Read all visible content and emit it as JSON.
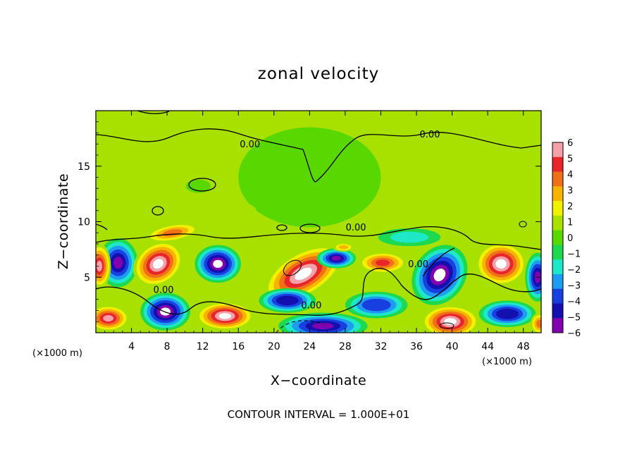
{
  "chart_data": {
    "type": "heatmap",
    "title": "zonal velocity",
    "xlabel": "X−coordinate",
    "ylabel": "Z−coordinate",
    "x_unit_left": "(×1000 m)",
    "x_unit_right": "(×1000 m)",
    "footnote": "CONTOUR INTERVAL = 1.000E+01",
    "xlim": [
      0,
      50
    ],
    "ylim": [
      0,
      20
    ],
    "x_ticks": [
      4,
      8,
      12,
      16,
      20,
      24,
      28,
      32,
      36,
      40,
      44,
      48
    ],
    "y_ticks": [
      5,
      10,
      15
    ],
    "colorbar": {
      "ticks": [
        "6",
        "5",
        "4",
        "3",
        "2",
        "1",
        "0",
        "−1",
        "−2",
        "−3",
        "−4",
        "−5",
        "−6"
      ],
      "range": [
        -6,
        6
      ],
      "colors": [
        "#f4a0a8",
        "#e8262a",
        "#f07018",
        "#f7b300",
        "#f0f000",
        "#a8e000",
        "#58d800",
        "#1ed850",
        "#1ee8c8",
        "#1e9cf0",
        "#1840e0",
        "#1410b0",
        "#8000b0"
      ]
    },
    "background_value": 0.6,
    "contour_labels": [
      {
        "text": "0.00",
        "x": 17.3,
        "y": 16.7
      },
      {
        "text": "0.00",
        "x": 37.5,
        "y": 17.6
      },
      {
        "text": "0.00",
        "x": 29.2,
        "y": 9.2
      },
      {
        "text": "0.00",
        "x": 7.6,
        "y": 3.6
      },
      {
        "text": "0.00",
        "x": 24.2,
        "y": 2.2
      },
      {
        "text": "0.00",
        "x": 36.2,
        "y": 5.9
      }
    ],
    "blobs": [
      {
        "x": 2.5,
        "y": 6.3,
        "rx": 2.2,
        "ry": 2.2,
        "v": -6
      },
      {
        "x": 0.4,
        "y": 6.0,
        "rx": 1.3,
        "ry": 2.0,
        "v": 6
      },
      {
        "x": 7.0,
        "y": 6.2,
        "rx": 3.0,
        "ry": 1.9,
        "v": 6.5,
        "rot": -35
      },
      {
        "x": 13.7,
        "y": 6.2,
        "rx": 2.6,
        "ry": 1.7,
        "v": -6.5
      },
      {
        "x": 23.3,
        "y": 5.3,
        "rx": 5.0,
        "ry": 2.0,
        "v": 6.5,
        "rot": -30
      },
      {
        "x": 27.0,
        "y": 6.7,
        "rx": 2.2,
        "ry": 0.9,
        "v": -6
      },
      {
        "x": 32.2,
        "y": 6.3,
        "rx": 2.8,
        "ry": 1.0,
        "v": 4.5
      },
      {
        "x": 38.6,
        "y": 5.2,
        "rx": 3.6,
        "ry": 2.3,
        "v": -6.5,
        "rot": -55
      },
      {
        "x": 45.5,
        "y": 6.2,
        "rx": 2.9,
        "ry": 2.0,
        "v": 6.5
      },
      {
        "x": 49.6,
        "y": 5.0,
        "rx": 1.4,
        "ry": 2.2,
        "v": -6
      },
      {
        "x": 1.4,
        "y": 1.3,
        "rx": 2.4,
        "ry": 1.2,
        "v": 5.5
      },
      {
        "x": 7.8,
        "y": 1.9,
        "rx": 2.8,
        "ry": 1.7,
        "v": -6.5
      },
      {
        "x": 14.5,
        "y": 1.5,
        "rx": 3.3,
        "ry": 1.3,
        "v": 6.5
      },
      {
        "x": 21.5,
        "y": 2.9,
        "rx": 3.2,
        "ry": 1.1,
        "v": -5.5
      },
      {
        "x": 25.5,
        "y": 0.6,
        "rx": 5.0,
        "ry": 1.2,
        "v": -6
      },
      {
        "x": 31.5,
        "y": 2.5,
        "rx": 3.5,
        "ry": 1.2,
        "v": -4.5
      },
      {
        "x": 39.8,
        "y": 1.0,
        "rx": 3.3,
        "ry": 1.5,
        "v": 6.5
      },
      {
        "x": 46.2,
        "y": 1.7,
        "rx": 3.2,
        "ry": 1.2,
        "v": -5.5
      },
      {
        "x": 49.8,
        "y": 0.8,
        "rx": 1.0,
        "ry": 1.0,
        "v": 4
      },
      {
        "x": 8.6,
        "y": 9.0,
        "rx": 3.2,
        "ry": 0.8,
        "v": 3.5,
        "rot": -10
      },
      {
        "x": 35.2,
        "y": 8.6,
        "rx": 3.5,
        "ry": 0.8,
        "v": -2
      },
      {
        "x": 27.8,
        "y": 7.7,
        "rx": 1.2,
        "ry": 0.4,
        "v": 3
      },
      {
        "x": 24.0,
        "y": 14.0,
        "rx": 8.0,
        "ry": 4.5,
        "v": 0.2
      },
      {
        "x": 12.0,
        "y": 11.0,
        "rx": 6.0,
        "ry": 1.2,
        "v": 1.2
      },
      {
        "x": 40.0,
        "y": 12.0,
        "rx": 7.0,
        "ry": 1.5,
        "v": 1.0
      },
      {
        "x": 11.5,
        "y": 13.2,
        "rx": 1.4,
        "ry": 0.6,
        "v": 0.0
      }
    ]
  }
}
